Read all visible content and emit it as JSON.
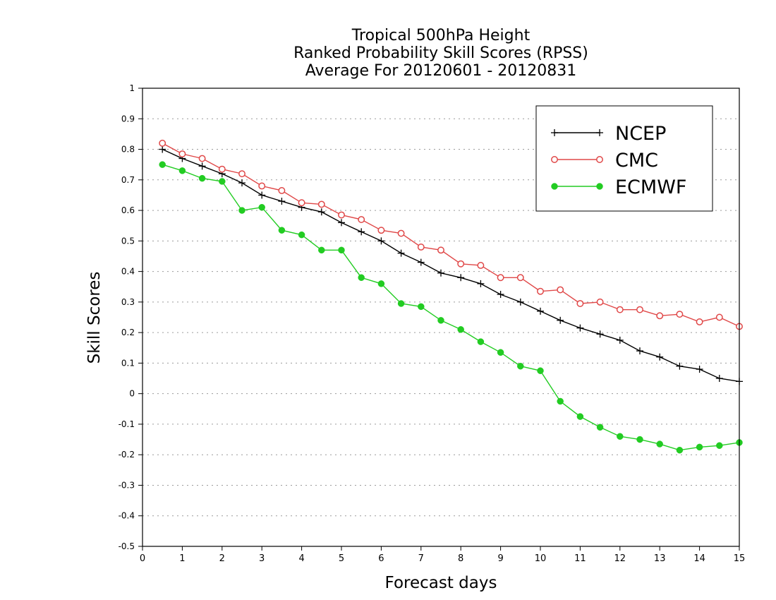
{
  "chart_data": {
    "type": "line",
    "title": [
      "Tropical 500hPa Height",
      "Ranked Probability Skill Scores (RPSS)",
      "Average For 20120601 - 20120831"
    ],
    "xlabel": "Forecast days",
    "ylabel": "Skill Scores",
    "xlim": [
      0,
      15
    ],
    "ylim": [
      -0.5,
      1
    ],
    "x_ticks": [
      "0",
      "1",
      "2",
      "3",
      "4",
      "5",
      "6",
      "7",
      "8",
      "9",
      "10",
      "11",
      "12",
      "13",
      "14",
      "15"
    ],
    "y_ticks": [
      "-0.5",
      "-0.4",
      "-0.3",
      "-0.2",
      "-0.1",
      "0",
      "0.1",
      "0.2",
      "0.3",
      "0.4",
      "0.5",
      "0.6",
      "0.7",
      "0.8",
      "0.9",
      "1"
    ],
    "grid": "dotted horizontal",
    "legend_position": "top-right",
    "x": [
      0.5,
      1,
      1.5,
      2,
      2.5,
      3,
      3.5,
      4,
      4.5,
      5,
      5.5,
      6,
      6.5,
      7,
      7.5,
      8,
      8.5,
      9,
      9.5,
      10,
      10.5,
      11,
      11.5,
      12,
      12.5,
      13,
      13.5,
      14,
      14.5,
      15
    ],
    "series": [
      {
        "name": "NCEP",
        "color": "#000000",
        "marker": "plus",
        "values": [
          0.8,
          0.77,
          0.745,
          0.72,
          0.69,
          0.65,
          0.63,
          0.61,
          0.595,
          0.56,
          0.53,
          0.5,
          0.46,
          0.43,
          0.395,
          0.38,
          0.36,
          0.325,
          0.3,
          0.27,
          0.24,
          0.215,
          0.195,
          0.175,
          0.14,
          0.12,
          0.09,
          0.08,
          0.05,
          0.04
        ]
      },
      {
        "name": "CMC",
        "color": "#e04848",
        "marker": "open-circle",
        "values": [
          0.82,
          0.785,
          0.77,
          0.735,
          0.72,
          0.68,
          0.665,
          0.625,
          0.62,
          0.585,
          0.57,
          0.535,
          0.525,
          0.48,
          0.47,
          0.425,
          0.42,
          0.38,
          0.38,
          0.335,
          0.34,
          0.295,
          0.3,
          0.275,
          0.275,
          0.255,
          0.26,
          0.235,
          0.25,
          0.22
        ]
      },
      {
        "name": "ECMWF",
        "color": "#22cc22",
        "marker": "filled-circle",
        "values": [
          0.75,
          0.73,
          0.705,
          0.695,
          0.6,
          0.61,
          0.535,
          0.52,
          0.47,
          0.47,
          0.38,
          0.36,
          0.295,
          0.285,
          0.24,
          0.21,
          0.17,
          0.135,
          0.09,
          0.075,
          -0.025,
          -0.075,
          -0.11,
          -0.14,
          -0.15,
          -0.165,
          -0.185,
          -0.175,
          -0.17,
          -0.16
        ]
      }
    ]
  }
}
